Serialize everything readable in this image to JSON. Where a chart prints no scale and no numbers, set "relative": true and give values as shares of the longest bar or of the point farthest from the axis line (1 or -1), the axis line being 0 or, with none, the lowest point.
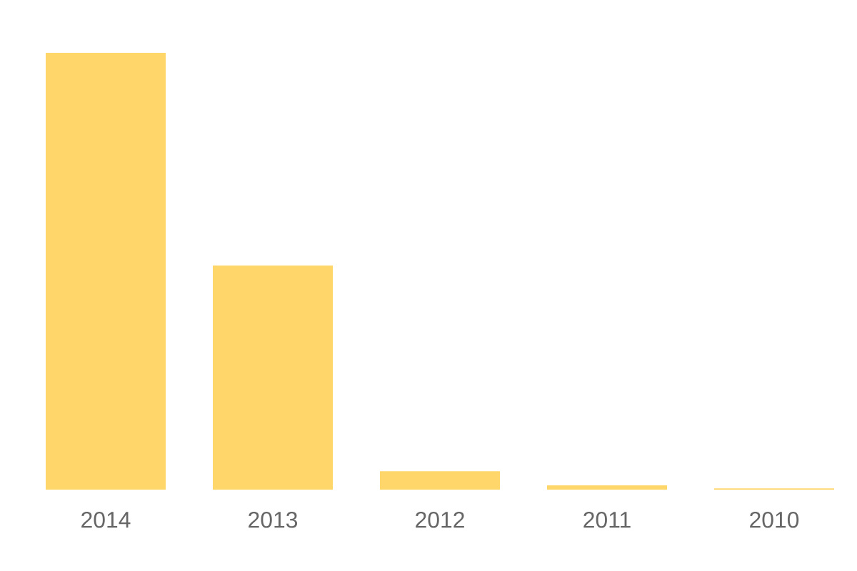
{
  "chart_data": {
    "type": "bar",
    "categories": [
      "2014",
      "2013",
      "2012",
      "2011",
      "2010"
    ],
    "values": [
      1,
      0.513,
      0.042,
      0.01,
      0.003
    ],
    "color": "#fed66a",
    "relative": true
  }
}
